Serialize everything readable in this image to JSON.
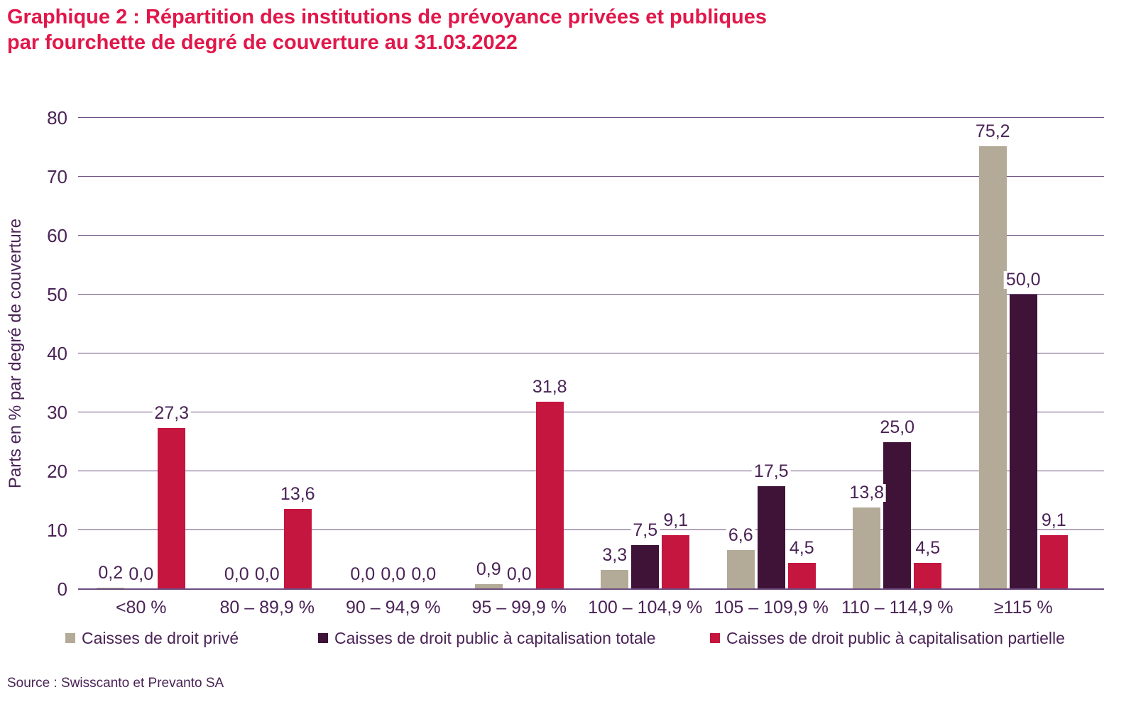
{
  "title": {
    "line1": "Graphique 2 : Répartition des institutions de prévoyance privées et publiques",
    "line2": "par fourchette de degré de couverture au 31.03.2022"
  },
  "source": "Source : Swisscanto et Prevanto SA",
  "colors": {
    "title": "#E1174A",
    "text": "#4A2356",
    "grid": "#6C4E80",
    "background": "#FFFFFF",
    "series_private": "#B3AB97",
    "series_public_total": "#3F1238",
    "series_public_partial": "#C4163F"
  },
  "chart_data": {
    "type": "bar",
    "title": "Graphique 2 : Répartition des institutions de prévoyance privées et publiques par fourchette de degré de couverture au 31.03.2022",
    "xlabel": "",
    "ylabel": "Parts en % par degré de couverture",
    "ylim": [
      0,
      80
    ],
    "yticks": [
      0,
      10,
      20,
      30,
      40,
      50,
      60,
      70,
      80
    ],
    "grid": true,
    "legend_position": "bottom",
    "categories": [
      "<80 %",
      "80 – 89,9 %",
      "90 – 94,9 %",
      "95 – 99,9 %",
      "100 – 104,9 %",
      "105 – 109,9 %",
      "110 – 114,9 %",
      "≥115 %"
    ],
    "series": [
      {
        "name": "Caisses de droit privé",
        "color": "#B3AB97",
        "values": [
          0.2,
          0.0,
          0.0,
          0.9,
          3.3,
          6.6,
          13.8,
          75.2
        ],
        "value_labels": [
          "0,2",
          "0,0",
          "0,0",
          "0,9",
          "3,3",
          "6,6",
          "13,8",
          "75,2"
        ]
      },
      {
        "name": "Caisses de droit public à capitalisation totale",
        "color": "#3F1238",
        "values": [
          0.0,
          0.0,
          0.0,
          0.0,
          7.5,
          17.5,
          25.0,
          50.0
        ],
        "value_labels": [
          "0,0",
          "0,0",
          "0,0",
          "0,0",
          "7,5",
          "17,5",
          "25,0",
          "50,0"
        ]
      },
      {
        "name": "Caisses de droit public à capitalisation partielle",
        "color": "#C4163F",
        "values": [
          27.3,
          13.6,
          0.0,
          31.8,
          9.1,
          4.5,
          4.5,
          9.1
        ],
        "value_labels": [
          "27,3",
          "13,6",
          "0,0",
          "31,8",
          "9,1",
          "4,5",
          "4,5",
          "9,1"
        ]
      }
    ],
    "legend_x_positions": [
      92,
      448,
      1000
    ]
  }
}
